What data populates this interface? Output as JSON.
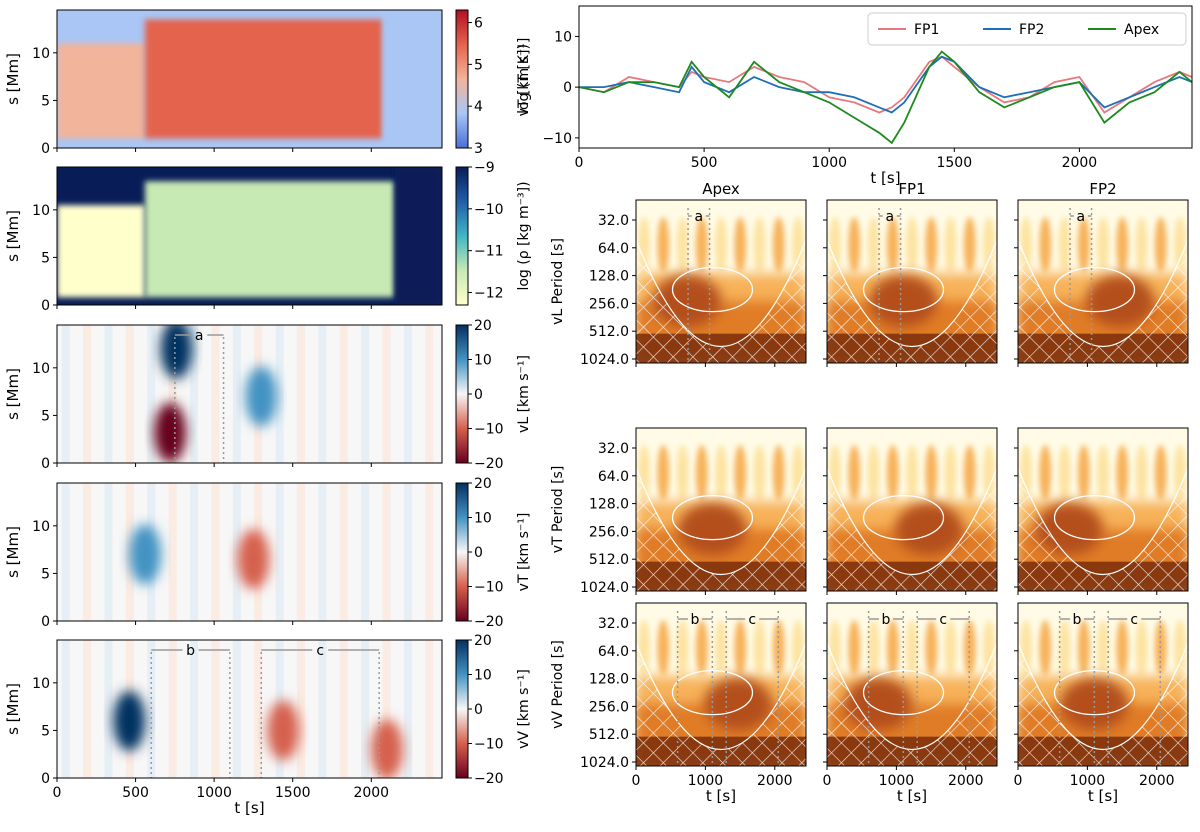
{
  "chart_data": {
    "type": "figure",
    "heatmaps": {
      "time_axis": {
        "label": "t [s]",
        "range": [
          0,
          2450
        ],
        "ticks": [
          0,
          500,
          1000,
          1500,
          2000
        ]
      },
      "s_axis": {
        "label": "s [Mm]",
        "range": [
          0,
          14.5
        ],
        "ticks": [
          0,
          5,
          10
        ]
      },
      "panels": [
        {
          "id": "T",
          "cbar_label": "log (T [K])",
          "cbar_ticks": [
            3,
            4,
            5,
            6
          ],
          "cbar_range": [
            3,
            6.3
          ],
          "cmap": "coolwarm",
          "colors": [
            "#4a6fd6",
            "#a9c6f5",
            "#f2b49b",
            "#e4644d",
            "#b10f24"
          ],
          "regions": [
            {
              "t": [
                0,
                560
              ],
              "s": [
                1,
                11
              ],
              "value": 5.0
            },
            {
              "t": [
                560,
                2075
              ],
              "s": [
                1,
                13.5
              ],
              "value": 5.8
            },
            {
              "t": [
                2075,
                2450
              ],
              "s": [
                0,
                14.5
              ],
              "value": 3.6
            }
          ]
        },
        {
          "id": "rho",
          "cbar_label": "log (ρ [kg m⁻³])",
          "cbar_ticks": [
            -9,
            -10,
            -11,
            -12
          ],
          "cbar_range": [
            -12.3,
            -9
          ],
          "cmap": "YlGnBu",
          "colors": [
            "#ffffcc",
            "#c7e9b4",
            "#41b6c4",
            "#225ea8",
            "#081d58"
          ],
          "regions": [
            {
              "t": [
                0,
                560
              ],
              "s": [
                0.8,
                10.5
              ],
              "value": -11.9
            },
            {
              "t": [
                560,
                2150
              ],
              "s": [
                0.8,
                13.0
              ],
              "value": -11.7
            },
            {
              "t": [
                2150,
                2450
              ],
              "s": [
                0,
                14.5
              ],
              "value": -9.1
            }
          ]
        },
        {
          "id": "vL",
          "cbar_label": "vL [km s⁻¹]",
          "cbar_ticks": [
            20,
            10,
            0,
            -10,
            -20
          ],
          "cbar_range": [
            -20,
            20
          ],
          "cmap": "RdBu",
          "colors": [
            "#67001f",
            "#d6604d",
            "#f7f7f7",
            "#4393c3",
            "#053061"
          ],
          "marker": {
            "label": "a",
            "t0": 750,
            "t1": 1060
          },
          "features": [
            {
              "t": 760,
              "s": 12.0,
              "value": 18
            },
            {
              "t": 720,
              "s": 3.2,
              "value": -19
            },
            {
              "t": 1300,
              "s": 7.0,
              "value": 8
            }
          ]
        },
        {
          "id": "vT",
          "cbar_label": "vT [km s⁻¹]",
          "cbar_ticks": [
            20,
            10,
            0,
            -10,
            -20
          ],
          "cbar_range": [
            -20,
            20
          ],
          "cmap": "RdBu",
          "colors": [
            "#67001f",
            "#d6604d",
            "#f7f7f7",
            "#4393c3",
            "#053061"
          ],
          "features": [
            {
              "t": 1250,
              "s": 6.5,
              "value": -8
            },
            {
              "t": 560,
              "s": 7.0,
              "value": 5
            }
          ]
        },
        {
          "id": "vV",
          "cbar_label": "vV [km s⁻¹]",
          "cbar_ticks": [
            20,
            10,
            0,
            -10,
            -20
          ],
          "cbar_range": [
            -20,
            20
          ],
          "cmap": "RdBu",
          "colors": [
            "#67001f",
            "#d6604d",
            "#f7f7f7",
            "#4393c3",
            "#053061"
          ],
          "markers": [
            {
              "label": "b",
              "t0": 600,
              "t1": 1100
            },
            {
              "label": "c",
              "t0": 1300,
              "t1": 2050
            }
          ],
          "features": [
            {
              "t": 460,
              "s": 6.0,
              "value": 15
            },
            {
              "t": 1440,
              "s": 5.0,
              "value": -14
            },
            {
              "t": 2100,
              "s": 3.0,
              "value": -10
            }
          ]
        }
      ]
    },
    "line_chart": {
      "type": "line",
      "ylabel": "vT [km s⁻¹]",
      "xlabel": "t [s]",
      "xlim": [
        0,
        2450
      ],
      "ylim": [
        -12,
        16
      ],
      "xticks": [
        0,
        500,
        1000,
        1500,
        2000
      ],
      "yticks": [
        -10,
        0,
        10
      ],
      "legend": "top-right",
      "x": [
        0,
        100,
        200,
        300,
        400,
        450,
        500,
        600,
        700,
        800,
        900,
        1000,
        1100,
        1200,
        1250,
        1300,
        1400,
        1450,
        1500,
        1600,
        1700,
        1800,
        1900,
        2000,
        2100,
        2200,
        2300,
        2400,
        2450
      ],
      "series": [
        {
          "name": "FP1",
          "color": "#e8787e",
          "values": [
            0,
            -1,
            2,
            1,
            0,
            3,
            2,
            1,
            4,
            2,
            1,
            -2,
            -3,
            -5,
            -4,
            -2,
            5,
            6,
            4,
            0,
            -3,
            -2,
            1,
            2,
            -5,
            -2,
            1,
            3,
            2
          ]
        },
        {
          "name": "FP2",
          "color": "#1f6fb4",
          "values": [
            0,
            0,
            1,
            0,
            -1,
            4,
            1,
            -1,
            2,
            0,
            -1,
            -1,
            -2,
            -4,
            -5,
            -3,
            4,
            6,
            5,
            0,
            -2,
            -1,
            0,
            1,
            -4,
            -2,
            0,
            2,
            1
          ]
        },
        {
          "name": "Apex",
          "color": "#1e8a1e",
          "values": [
            0,
            -1,
            1,
            1,
            0,
            5,
            2,
            -2,
            5,
            1,
            -1,
            -3,
            -6,
            -9,
            -11,
            -7,
            4,
            7,
            5,
            -1,
            -4,
            -2,
            0,
            1,
            -7,
            -3,
            -1,
            3,
            1
          ]
        }
      ]
    },
    "wavelet": {
      "columns": [
        "Apex",
        "FP1",
        "FP2"
      ],
      "rows": [
        {
          "id": "vL",
          "ylabel": "vL Period [s]"
        },
        {
          "id": "vT",
          "ylabel": "vT Period [s]"
        },
        {
          "id": "vV",
          "ylabel": "vV Period [s]"
        }
      ],
      "period_ticks": [
        "32.0",
        "64.0",
        "128.0",
        "256.0",
        "512.0",
        "1024.0"
      ],
      "x_ticks": [
        0,
        1000,
        2000
      ],
      "xlim": [
        0,
        2450
      ],
      "xlabel": "t [s]",
      "row_markers": {
        "vL": [
          {
            "label": "a",
            "t0": 750,
            "t1": 1060
          }
        ],
        "vV": [
          {
            "label": "b",
            "t0": 600,
            "t1": 1100
          },
          {
            "label": "c",
            "t0": 1300,
            "t1": 2050
          }
        ]
      },
      "power_colors": [
        "#fffbe6",
        "#fde3a1",
        "#f7b25a",
        "#e07b26",
        "#b4501a",
        "#7a2e0c"
      ]
    }
  }
}
